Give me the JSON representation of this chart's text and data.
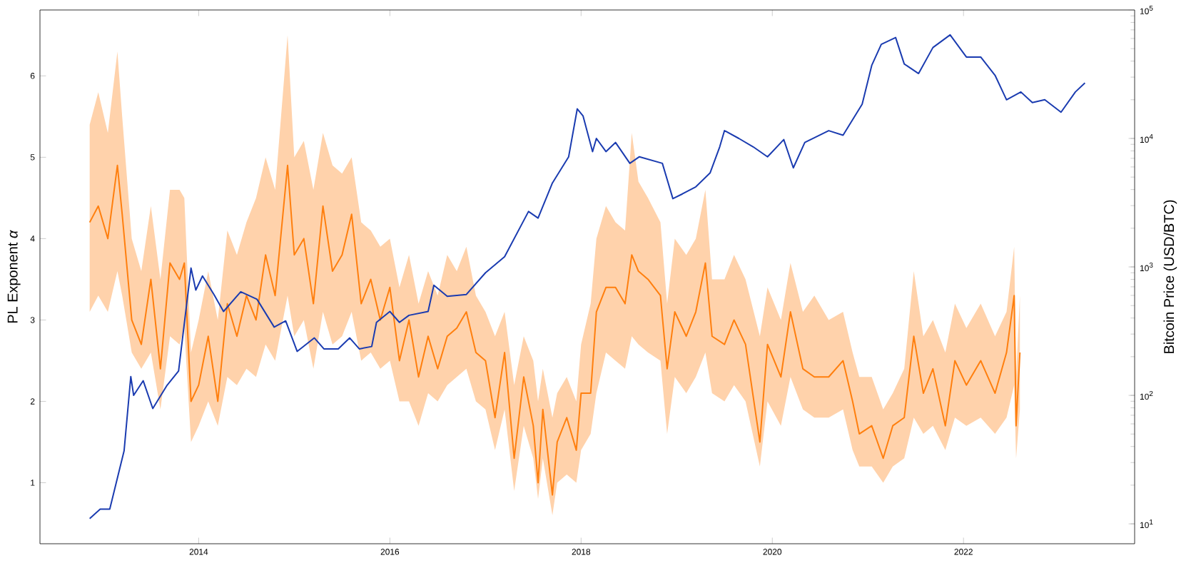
{
  "chart_data": {
    "type": "line",
    "ylabel": "PL Exponent *α*",
    "y2label": "Bitcoin Price (USD/BTC)",
    "log": "y2",
    "grid": false,
    "xlim": [
      2012.34,
      2023.79
    ],
    "xticks": [
      2014,
      2016,
      2018,
      2020,
      2022
    ],
    "ylim": [
      0.25,
      6.81
    ],
    "yticks": [
      1,
      2,
      3,
      4,
      5,
      6
    ],
    "y2lim": [
      7,
      100000
    ],
    "y2ticks": [
      {
        "value": 10,
        "label": "10$^{1}$"
      },
      {
        "value": 100,
        "label": "10$^{2}$"
      },
      {
        "value": 1000,
        "label": "10$^{3}$"
      },
      {
        "value": 10000,
        "label": "10$^{4}$"
      },
      {
        "value": 100000,
        "label": "10$^{5}$"
      }
    ],
    "series": [
      {
        "color": "#ff7f0e",
        "x": [
          2012.86,
          2012.95,
          2013.05,
          2013.15,
          2013.2,
          2013.3,
          2013.4,
          2013.5,
          2013.6,
          2013.7,
          2013.8,
          2013.85,
          2013.92,
          2014.0,
          2014.1,
          2014.2,
          2014.3,
          2014.4,
          2014.5,
          2014.6,
          2014.7,
          2014.8,
          2014.93,
          2015.0,
          2015.1,
          2015.2,
          2015.3,
          2015.4,
          2015.5,
          2015.6,
          2015.7,
          2015.8,
          2015.9,
          2016.0,
          2016.1,
          2016.2,
          2016.3,
          2016.4,
          2016.5,
          2016.6,
          2016.7,
          2016.8,
          2016.9,
          2017.0,
          2017.1,
          2017.2,
          2017.3,
          2017.4,
          2017.5,
          2017.55,
          2017.6,
          2017.7,
          2017.75,
          2017.85,
          2017.95,
          2018.0,
          2018.1,
          2018.16,
          2018.26,
          2018.36,
          2018.46,
          2018.53,
          2018.6,
          2018.7,
          2018.83,
          2018.9,
          2018.98,
          2019.1,
          2019.2,
          2019.3,
          2019.37,
          2019.5,
          2019.6,
          2019.72,
          2019.87,
          2019.95,
          2020.09,
          2020.19,
          2020.32,
          2020.44,
          2020.59,
          2020.74,
          2020.84,
          2020.91,
          2021.04,
          2021.16,
          2021.26,
          2021.38,
          2021.48,
          2021.58,
          2021.68,
          2021.81,
          2021.91,
          2022.03,
          2022.18,
          2022.33,
          2022.45,
          2022.53,
          2022.55,
          2022.59
        ],
        "values": [
          4.2,
          4.4,
          4.0,
          4.9,
          4.3,
          3.0,
          2.7,
          3.5,
          2.4,
          3.7,
          3.5,
          3.7,
          2.0,
          2.2,
          2.8,
          2.0,
          3.2,
          2.8,
          3.3,
          3.0,
          3.8,
          3.3,
          4.9,
          3.8,
          4.0,
          3.2,
          4.4,
          3.6,
          3.8,
          4.3,
          3.2,
          3.5,
          3.0,
          3.4,
          2.5,
          3.0,
          2.3,
          2.8,
          2.4,
          2.8,
          2.9,
          3.1,
          2.6,
          2.5,
          1.8,
          2.6,
          1.3,
          2.3,
          1.7,
          1.0,
          1.9,
          0.85,
          1.5,
          1.8,
          1.4,
          2.1,
          2.1,
          3.1,
          3.4,
          3.4,
          3.2,
          3.8,
          3.6,
          3.5,
          3.3,
          2.4,
          3.1,
          2.8,
          3.1,
          3.7,
          2.8,
          2.7,
          3.0,
          2.7,
          1.5,
          2.7,
          2.3,
          3.1,
          2.4,
          2.3,
          2.3,
          2.5,
          2.0,
          1.6,
          1.7,
          1.3,
          1.7,
          1.8,
          2.8,
          2.1,
          2.4,
          1.7,
          2.5,
          2.2,
          2.5,
          2.1,
          2.6,
          3.3,
          1.7,
          2.6
        ],
        "lower": [
          3.1,
          3.3,
          3.1,
          3.6,
          3.3,
          2.6,
          2.4,
          2.6,
          1.9,
          2.8,
          2.7,
          2.9,
          1.5,
          1.7,
          2.0,
          1.7,
          2.3,
          2.2,
          2.4,
          2.3,
          2.7,
          2.5,
          3.3,
          2.8,
          3.0,
          2.4,
          3.1,
          2.7,
          2.8,
          3.1,
          2.5,
          2.6,
          2.4,
          2.5,
          2.0,
          2.0,
          1.7,
          2.1,
          2.0,
          2.2,
          2.3,
          2.4,
          2.0,
          1.9,
          1.4,
          1.9,
          0.9,
          1.7,
          1.3,
          0.8,
          1.3,
          0.6,
          1.0,
          1.1,
          1.0,
          1.4,
          1.6,
          2.1,
          2.6,
          2.5,
          2.4,
          2.8,
          2.7,
          2.6,
          2.5,
          1.6,
          2.3,
          2.1,
          2.3,
          2.6,
          2.1,
          2.0,
          2.2,
          2.0,
          1.2,
          2.0,
          1.7,
          2.3,
          1.9,
          1.8,
          1.8,
          1.9,
          1.4,
          1.2,
          1.2,
          1.0,
          1.2,
          1.3,
          1.8,
          1.6,
          1.7,
          1.4,
          1.8,
          1.7,
          1.8,
          1.6,
          1.8,
          2.2,
          1.3,
          1.9
        ],
        "upper": [
          5.4,
          5.8,
          5.3,
          6.3,
          5.5,
          4.0,
          3.6,
          4.4,
          3.5,
          4.6,
          4.6,
          4.5,
          2.6,
          3.0,
          3.6,
          3.0,
          4.1,
          3.8,
          4.2,
          4.5,
          5.0,
          4.6,
          6.5,
          5.0,
          5.2,
          4.6,
          5.3,
          4.9,
          4.8,
          5.0,
          4.2,
          4.1,
          3.9,
          4.0,
          3.4,
          3.8,
          3.2,
          3.6,
          3.3,
          3.8,
          3.6,
          3.9,
          3.3,
          3.1,
          2.8,
          3.1,
          2.2,
          2.8,
          2.5,
          2.0,
          2.4,
          1.8,
          2.1,
          2.3,
          2.0,
          2.7,
          3.2,
          4.0,
          4.4,
          4.2,
          4.1,
          5.3,
          4.7,
          4.5,
          4.2,
          3.2,
          4.0,
          3.8,
          4.0,
          4.6,
          3.5,
          3.5,
          3.8,
          3.5,
          2.8,
          3.4,
          3.0,
          3.7,
          3.1,
          3.3,
          3.0,
          3.1,
          2.6,
          2.3,
          2.3,
          1.9,
          2.1,
          2.4,
          3.6,
          2.8,
          3.0,
          2.6,
          3.2,
          2.9,
          3.2,
          2.8,
          3.1,
          3.9,
          2.3,
          3.3
        ]
      },
      {
        "color": "#1a3bb0",
        "axis": "y2",
        "x": [
          2012.86,
          2012.97,
          2013.07,
          2013.22,
          2013.29,
          2013.32,
          2013.42,
          2013.52,
          2013.67,
          2013.79,
          2013.92,
          2013.97,
          2014.04,
          2014.16,
          2014.26,
          2014.44,
          2014.61,
          2014.79,
          2014.91,
          2015.03,
          2015.21,
          2015.31,
          2015.46,
          2015.58,
          2015.68,
          2015.81,
          2015.86,
          2016.0,
          2016.1,
          2016.2,
          2016.4,
          2016.46,
          2016.6,
          2016.8,
          2017.0,
          2017.2,
          2017.45,
          2017.55,
          2017.7,
          2017.87,
          2017.96,
          2018.02,
          2018.12,
          2018.16,
          2018.26,
          2018.36,
          2018.51,
          2018.61,
          2018.85,
          2018.96,
          2019.06,
          2019.2,
          2019.35,
          2019.45,
          2019.5,
          2019.65,
          2019.8,
          2019.95,
          2020.12,
          2020.22,
          2020.34,
          2020.59,
          2020.74,
          2020.94,
          2021.04,
          2021.14,
          2021.29,
          2021.38,
          2021.53,
          2021.68,
          2021.86,
          2022.03,
          2022.18,
          2022.33,
          2022.45,
          2022.6,
          2022.72,
          2022.85,
          2023.02,
          2023.17,
          2023.27
        ],
        "values": [
          11,
          13,
          13,
          37,
          140,
          100,
          130,
          79,
          120,
          155,
          980,
          660,
          850,
          610,
          450,
          640,
          560,
          340,
          380,
          220,
          280,
          230,
          230,
          280,
          230,
          240,
          370,
          450,
          370,
          420,
          450,
          720,
          590,
          610,
          900,
          1200,
          2700,
          2400,
          4500,
          7200,
          17000,
          15000,
          7900,
          10000,
          7900,
          9300,
          6400,
          7200,
          6400,
          3400,
          3700,
          4200,
          5400,
          8600,
          11500,
          10000,
          8600,
          7200,
          9800,
          5900,
          9300,
          11500,
          10600,
          18500,
          37000,
          54000,
          61000,
          38000,
          32000,
          51000,
          64000,
          43000,
          43000,
          31000,
          20000,
          23000,
          19000,
          20000,
          16000,
          23000,
          27000
        ]
      }
    ]
  }
}
